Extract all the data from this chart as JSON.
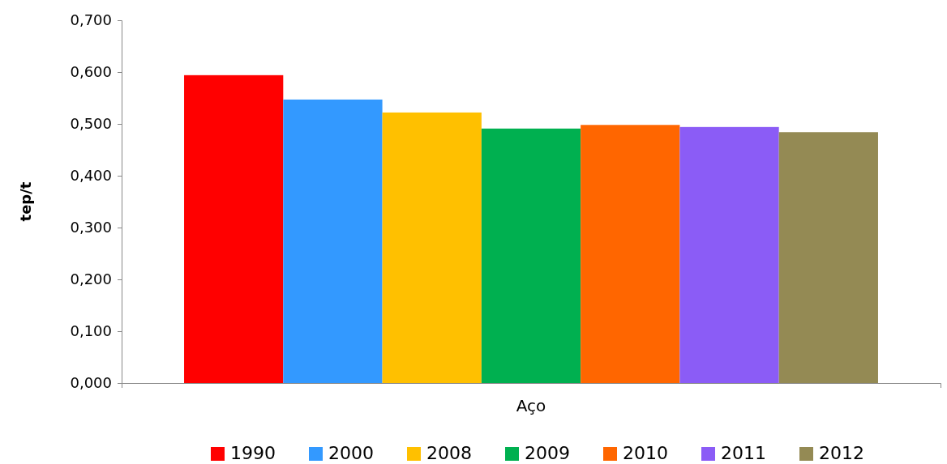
{
  "chart_data": {
    "type": "bar",
    "ylabel": "tep/t",
    "categories": [
      "Aço"
    ],
    "series": [
      {
        "name": "1990",
        "color": "#ff0000",
        "values": [
          0.594
        ]
      },
      {
        "name": "2000",
        "color": "#3399ff",
        "values": [
          0.547
        ]
      },
      {
        "name": "2008",
        "color": "#ffc000",
        "values": [
          0.522
        ]
      },
      {
        "name": "2009",
        "color": "#00b050",
        "values": [
          0.491
        ]
      },
      {
        "name": "2010",
        "color": "#ff6600",
        "values": [
          0.498
        ]
      },
      {
        "name": "2011",
        "color": "#8b5cf6",
        "values": [
          0.494
        ]
      },
      {
        "name": "2012",
        "color": "#948a54",
        "values": [
          0.484
        ]
      }
    ],
    "ylim": [
      0,
      0.7
    ],
    "yticks": [
      {
        "value": 0,
        "label": "0,000"
      },
      {
        "value": 0.1,
        "label": "0,100"
      },
      {
        "value": 0.2,
        "label": "0,200"
      },
      {
        "value": 0.3,
        "label": "0,300"
      },
      {
        "value": 0.4,
        "label": "0,400"
      },
      {
        "value": 0.5,
        "label": "0,500"
      },
      {
        "value": 0.6,
        "label": "0,600"
      },
      {
        "value": 0.7,
        "label": "0,700"
      }
    ],
    "grid": false,
    "legend": "bottom"
  }
}
